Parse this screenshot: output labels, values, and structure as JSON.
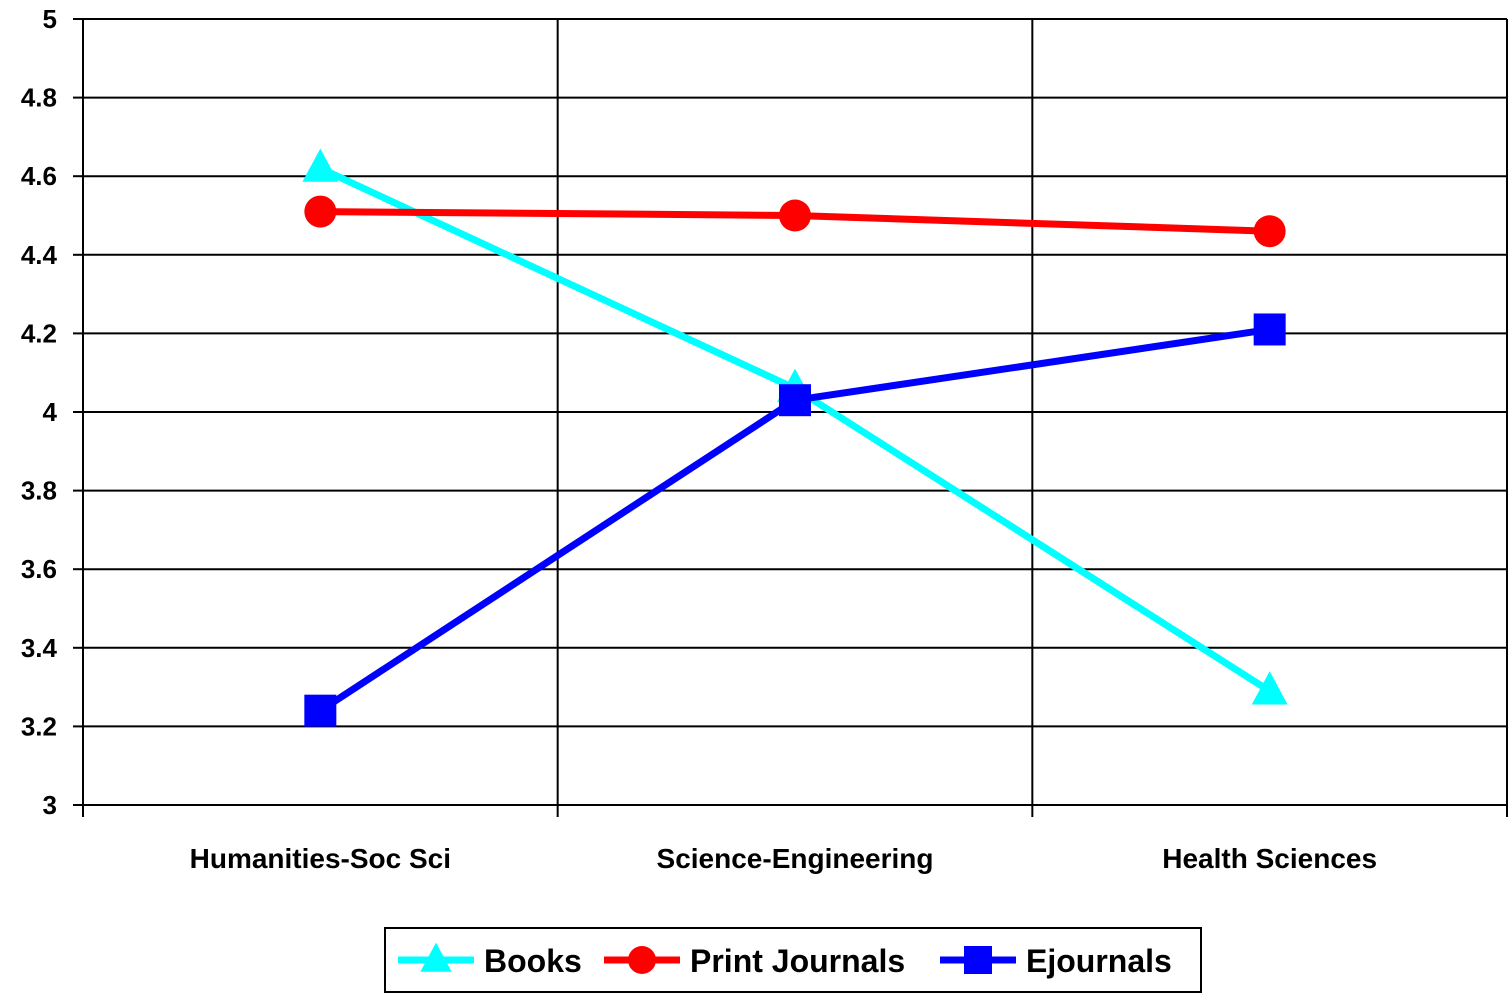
{
  "chart_data": {
    "type": "line",
    "categories": [
      "Humanities-Soc Sci",
      "Science-Engineering",
      "Health Sciences"
    ],
    "series": [
      {
        "name": "Books",
        "values": [
          4.62,
          4.06,
          3.29
        ],
        "color": "#00FFFF",
        "marker": "triangle"
      },
      {
        "name": "Print Journals",
        "values": [
          4.51,
          4.5,
          4.46
        ],
        "color": "#FF0000",
        "marker": "circle"
      },
      {
        "name": "Ejournals",
        "values": [
          3.24,
          4.03,
          4.21
        ],
        "color": "#0000FF",
        "marker": "square"
      }
    ],
    "ylim": [
      3,
      5
    ],
    "yticks": [
      "3",
      "3.2",
      "3.4",
      "3.6",
      "3.8",
      "4",
      "4.2",
      "4.4",
      "4.6",
      "4.8",
      "5"
    ],
    "grid": true,
    "legend_position": "bottom"
  }
}
